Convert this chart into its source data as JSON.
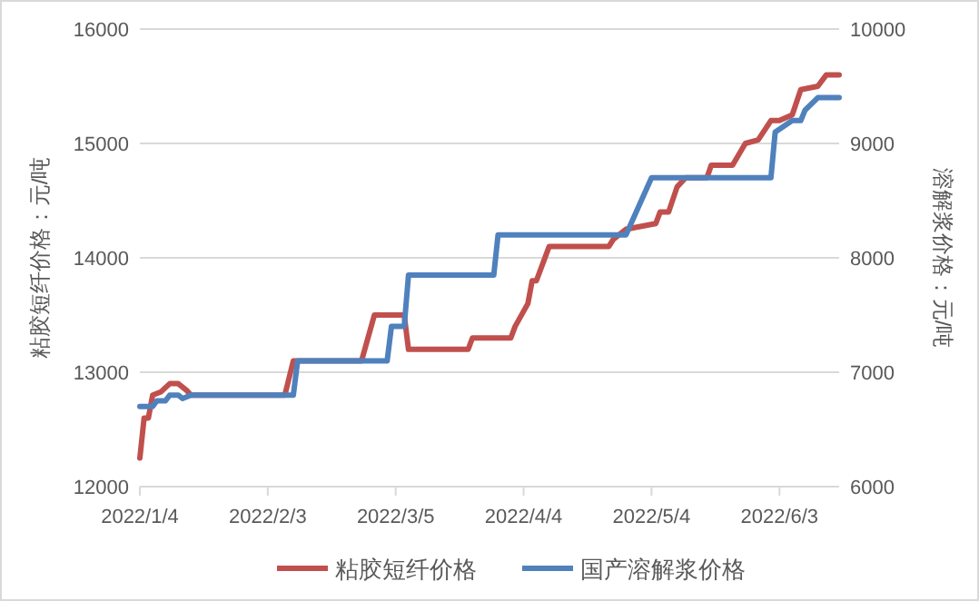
{
  "chart_data": {
    "type": "line",
    "ylabel": "粘胶短纤价格：元/吨",
    "y2label": "溶解浆价格：元/吨",
    "xlim": [
      "2022-01-04",
      "2022-06-17"
    ],
    "xticks": [
      {
        "value": "2022-01-04",
        "label": "2022/1/4"
      },
      {
        "value": "2022-02-03",
        "label": "2022/2/3"
      },
      {
        "value": "2022-03-05",
        "label": "2022/3/5"
      },
      {
        "value": "2022-04-04",
        "label": "2022/4/4"
      },
      {
        "value": "2022-05-04",
        "label": "2022/5/4"
      },
      {
        "value": "2022-06-03",
        "label": "2022/6/3"
      }
    ],
    "ylim": [
      12000,
      16000
    ],
    "yticks": [
      12000,
      13000,
      14000,
      15000,
      16000
    ],
    "y2lim": [
      6000,
      10000
    ],
    "y2ticks": [
      6000,
      7000,
      8000,
      9000,
      10000
    ],
    "grid": "y",
    "legend": "bottom",
    "marker": "none",
    "line_style": "solid",
    "series": [
      {
        "name": "粘胶短纤价格",
        "color": "#c0504d",
        "x": [
          "2022-01-04",
          "2022-01-05",
          "2022-01-06",
          "2022-01-07",
          "2022-01-09",
          "2022-01-11",
          "2022-01-13",
          "2022-01-15",
          "2022-01-16",
          "2022-02-07",
          "2022-02-09",
          "2022-02-25",
          "2022-02-28",
          "2022-03-07",
          "2022-03-08",
          "2022-03-22",
          "2022-03-23",
          "2022-04-01",
          "2022-04-02",
          "2022-04-05",
          "2022-04-06",
          "2022-04-07",
          "2022-04-10",
          "2022-04-24",
          "2022-04-25",
          "2022-04-28",
          "2022-05-05",
          "2022-05-06",
          "2022-05-08",
          "2022-05-10",
          "2022-05-12",
          "2022-05-17",
          "2022-05-18",
          "2022-05-23",
          "2022-05-26",
          "2022-05-29",
          "2022-06-01",
          "2022-06-03",
          "2022-06-06",
          "2022-06-08",
          "2022-06-12",
          "2022-06-14",
          "2022-06-17"
        ],
        "values": [
          12250,
          12600,
          12600,
          12800,
          12830,
          12900,
          12900,
          12840,
          12800,
          12800,
          13100,
          13100,
          13500,
          13500,
          13200,
          13200,
          13300,
          13300,
          13400,
          13600,
          13800,
          13800,
          14100,
          14100,
          14160,
          14250,
          14300,
          14400,
          14400,
          14620,
          14700,
          14700,
          14810,
          14810,
          15000,
          15030,
          15200,
          15200,
          15250,
          15470,
          15500,
          15600,
          15600
        ]
      },
      {
        "name": "国产溶解浆价格",
        "color": "#4f81bd",
        "axis": "y2",
        "x": [
          "2022-01-04",
          "2022-01-07",
          "2022-01-08",
          "2022-01-10",
          "2022-01-11",
          "2022-01-13",
          "2022-01-14",
          "2022-01-16",
          "2022-02-09",
          "2022-02-10",
          "2022-03-03",
          "2022-03-04",
          "2022-03-07",
          "2022-03-08",
          "2022-03-28",
          "2022-03-29",
          "2022-04-28",
          "2022-05-04",
          "2022-06-01",
          "2022-06-02",
          "2022-06-06",
          "2022-06-08",
          "2022-06-09",
          "2022-06-12",
          "2022-06-17"
        ],
        "values": [
          6700,
          6700,
          6750,
          6750,
          6800,
          6800,
          6770,
          6800,
          6800,
          7100,
          7100,
          7400,
          7400,
          7850,
          7850,
          8200,
          8200,
          8700,
          8700,
          9100,
          9200,
          9200,
          9290,
          9400,
          9400
        ]
      }
    ]
  }
}
